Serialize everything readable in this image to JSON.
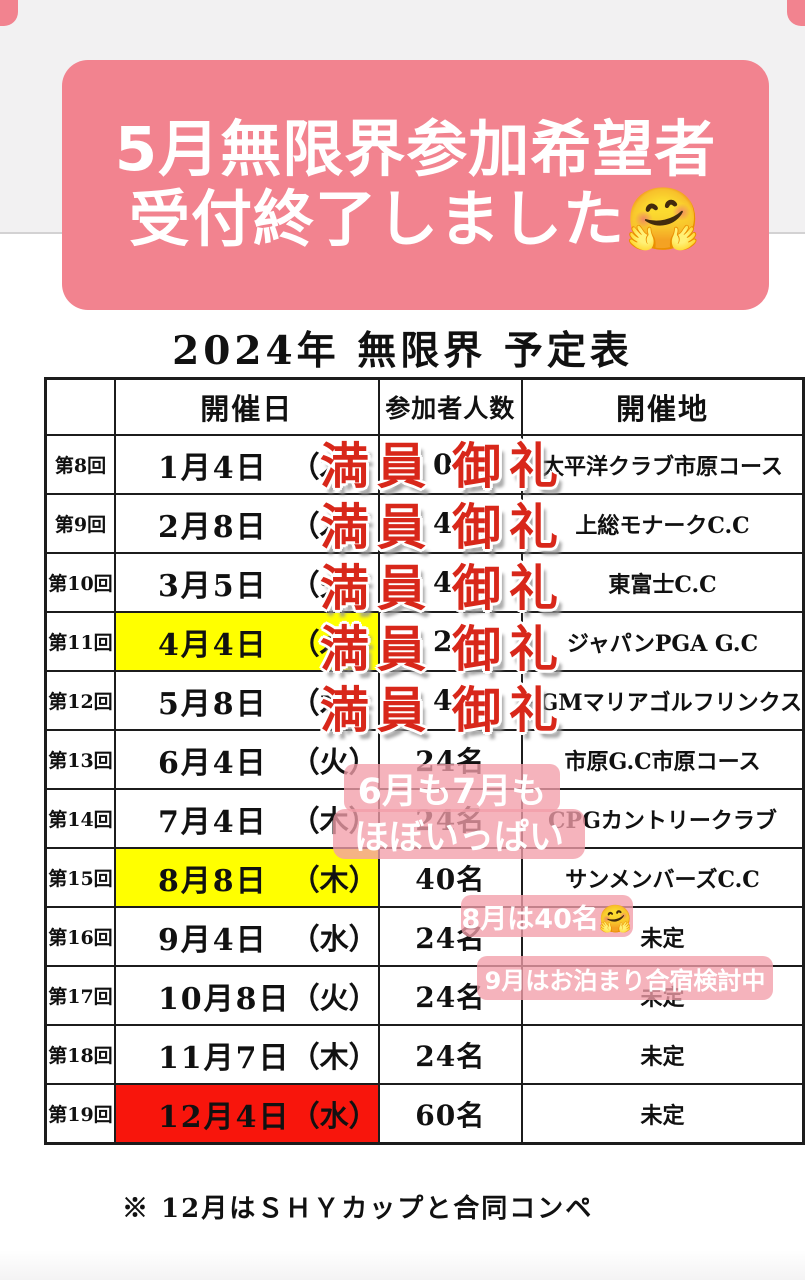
{
  "banner": {
    "line1": "5月無限界参加希望者",
    "line2": "受付終了しました🤗"
  },
  "title": "2024年 無限界 予定表",
  "table": {
    "headers": {
      "round": "",
      "date": "開催日",
      "participants": "参加者人数",
      "venue": "開催地"
    },
    "rows": [
      {
        "round": "第8回",
        "date": "1月4日",
        "weekday": "（木）",
        "participants": "0",
        "venue": "太平洋クラブ市原コース",
        "stamp": "満員御礼",
        "date_highlight": "none"
      },
      {
        "round": "第9回",
        "date": "2月8日",
        "weekday": "（木）",
        "participants": "4",
        "venue": "上総モナークC.C",
        "stamp": "満員御礼",
        "date_highlight": "none"
      },
      {
        "round": "第10回",
        "date": "3月5日",
        "weekday": "（火）",
        "participants": "4",
        "venue": "東富士C.C",
        "stamp": "満員御礼",
        "date_highlight": "none"
      },
      {
        "round": "第11回",
        "date": "4月4日",
        "weekday": "（木）",
        "participants": "2",
        "venue": "ジャパンPGA G.C",
        "stamp": "満員御礼",
        "date_highlight": "yellow"
      },
      {
        "round": "第12回",
        "date": "5月8日",
        "weekday": "（水）",
        "participants": "4",
        "venue": "PGMマリアゴルフリンクス",
        "stamp": "満員御礼",
        "date_highlight": "none"
      },
      {
        "round": "第13回",
        "date": "6月4日",
        "weekday": "（火）",
        "participants": "24名",
        "venue": "市原G.C市原コース",
        "stamp": null,
        "date_highlight": "none"
      },
      {
        "round": "第14回",
        "date": "7月4日",
        "weekday": "（木）",
        "participants": "24名",
        "venue": "CPGカントリークラブ",
        "stamp": null,
        "date_highlight": "none"
      },
      {
        "round": "第15回",
        "date": "8月8日",
        "weekday": "（木）",
        "participants": "40名",
        "venue": "サンメンバーズC.C",
        "stamp": null,
        "date_highlight": "yellow"
      },
      {
        "round": "第16回",
        "date": "9月4日",
        "weekday": "（水）",
        "participants": "24名",
        "venue": "未定",
        "stamp": null,
        "date_highlight": "none"
      },
      {
        "round": "第17回",
        "date": "10月8日",
        "weekday": "（火）",
        "participants": "24名",
        "venue": "未定",
        "stamp": null,
        "date_highlight": "none"
      },
      {
        "round": "第18回",
        "date": "11月7日",
        "weekday": "（木）",
        "participants": "24名",
        "venue": "未定",
        "stamp": null,
        "date_highlight": "none"
      },
      {
        "round": "第19回",
        "date": "12月4日",
        "weekday": "（水）",
        "participants": "60名",
        "venue": "未定",
        "stamp": null,
        "date_highlight": "red"
      }
    ]
  },
  "notes": {
    "june_july_line1": "6月も7月も",
    "june_july_line2": "ほぼいっぱい",
    "august": "8月は40名🤗",
    "september": "9月はお泊まり合宿検討中"
  },
  "footer_note": "※ 12月はＳＨＹカップと合同コンペ",
  "colors": {
    "banner_pink": "#f2838f",
    "note_pink": "#f29da9",
    "background_gray": "#f2f1f2",
    "highlight_yellow": "#ffff00",
    "highlight_red": "#f8150c",
    "stamp_red": "#d8271a",
    "text_black": "#111111"
  }
}
